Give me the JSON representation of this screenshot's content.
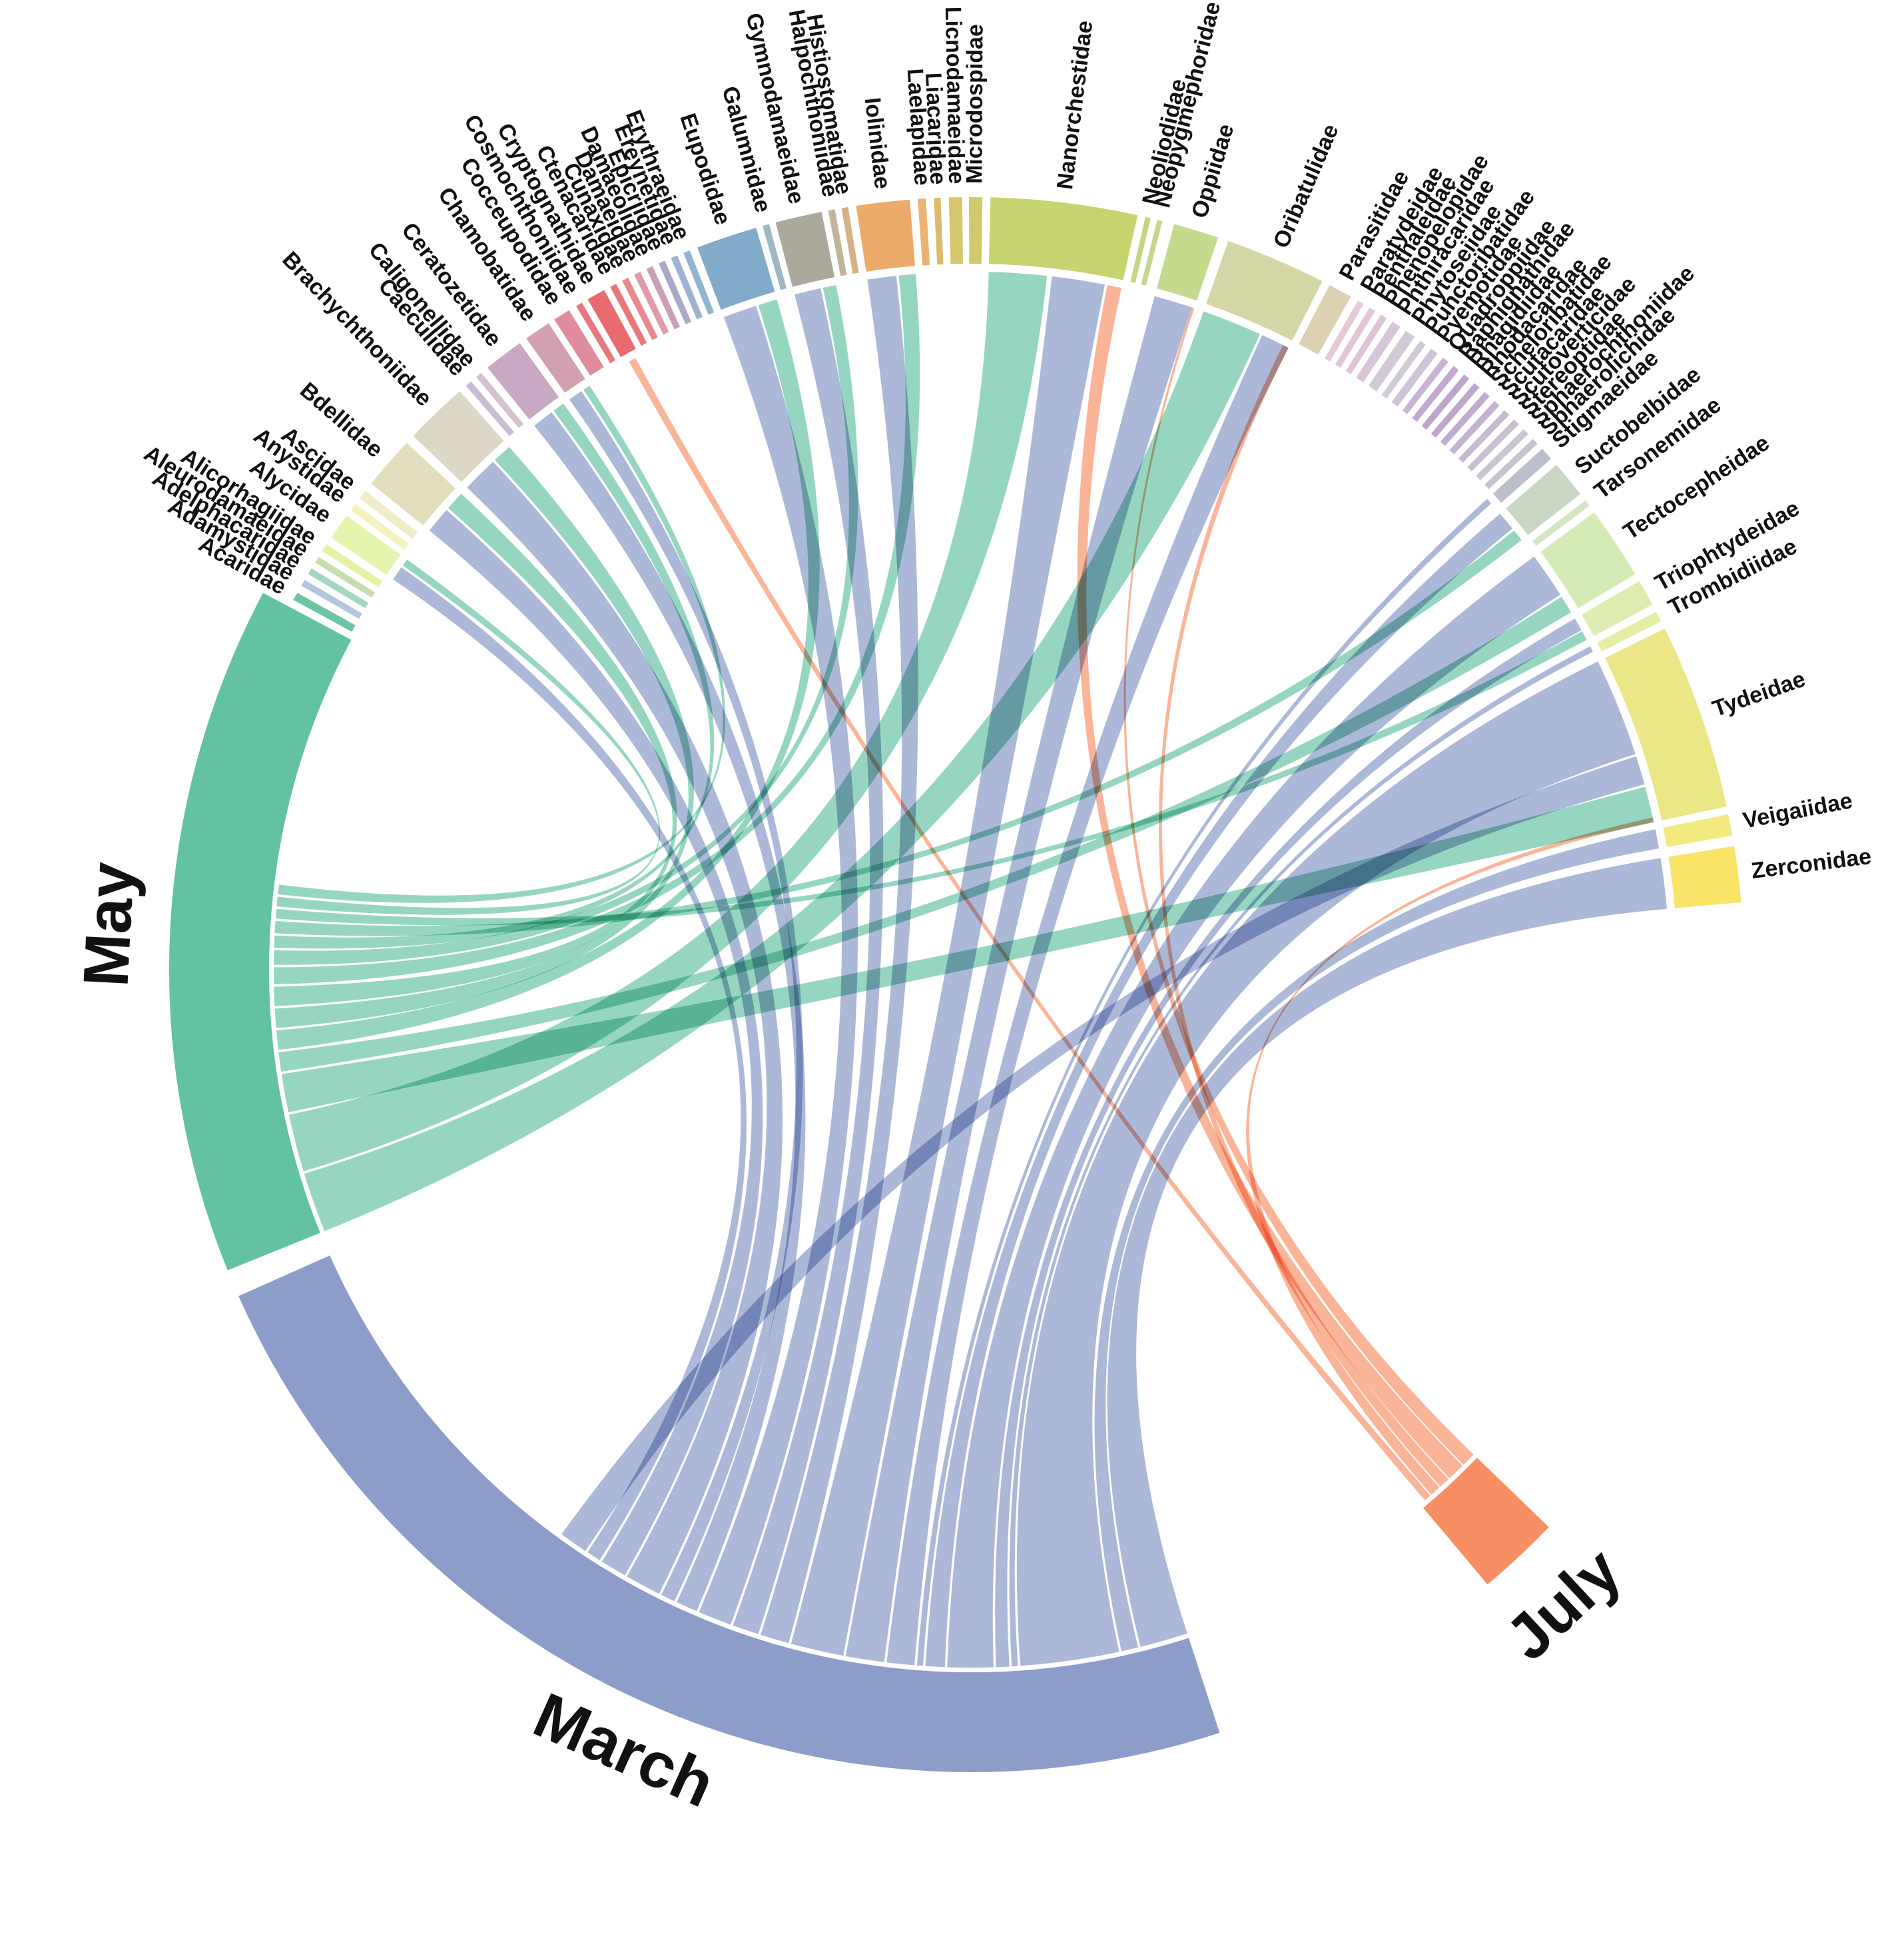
{
  "chart_data": {
    "type": "chord",
    "months": [
      {
        "name": "March",
        "color": "#8c9dc9",
        "ribbon_color": "#a3b0d4",
        "start": 162,
        "end": 246
      },
      {
        "name": "May",
        "color": "#62c2a2",
        "ribbon_color": "#7fcdb3",
        "start": 248,
        "end": 298
      },
      {
        "name": "July",
        "color": "#f88e63",
        "ribbon_color": "#f9a381",
        "start": 134,
        "end": 140
      }
    ],
    "families": [
      {
        "name": "Acaridae",
        "color": "#6dc3a6",
        "start": 298.6,
        "end": 299.2
      },
      {
        "name": "Adamystidae",
        "color": "#b2c6de",
        "start": 299.8,
        "end": 300.3
      },
      {
        "name": "Adelphacaridae",
        "color": "#a3d6c2",
        "start": 300.8,
        "end": 301.3
      },
      {
        "name": "Aleurodamaeidae",
        "color": "#c6ddb0",
        "start": 301.8,
        "end": 302.3
      },
      {
        "name": "Alicorhagiidae",
        "color": "#e6f0a7",
        "start": 302.8,
        "end": 303.4
      },
      {
        "name": "Alycidae",
        "color": "#e6f5ad",
        "start": 304.0,
        "end": 306.0
      },
      {
        "name": "Anystidae",
        "color": "#f5f2c0",
        "start": 306.5,
        "end": 307.1
      },
      {
        "name": "Ascidae",
        "color": "#f0ecc8",
        "start": 307.6,
        "end": 308.3
      },
      {
        "name": "Bdellidae",
        "color": "#e2ddbd",
        "start": 309.0,
        "end": 313.0
      },
      {
        "name": "Brachychthoniidae",
        "color": "#dcd8c5",
        "start": 313.7,
        "end": 318.5
      },
      {
        "name": "Caeculidae",
        "color": "#c7bdd2",
        "start": 319.1,
        "end": 319.6
      },
      {
        "name": "Caligonellidae",
        "color": "#d5c2cd",
        "start": 320.1,
        "end": 320.6
      },
      {
        "name": "Ceratozetidae",
        "color": "#c9a8c4",
        "start": 321.2,
        "end": 324.2
      },
      {
        "name": "Chamobatidae",
        "color": "#d3a0b1",
        "start": 324.8,
        "end": 326.8
      },
      {
        "name": "Cocceupodidae",
        "color": "#df8c9c",
        "start": 327.3,
        "end": 328.6
      },
      {
        "name": "Cosmochthoniidae",
        "color": "#e87880",
        "start": 329.2,
        "end": 329.7
      },
      {
        "name": "Cryptognathidae",
        "color": "#e96a6f",
        "start": 330.2,
        "end": 331.6
      },
      {
        "name": "Ctenacaridae",
        "color": "#e87878",
        "start": 332.1,
        "end": 332.6
      },
      {
        "name": "Cunaxidae",
        "color": "#e68a8f",
        "start": 333.1,
        "end": 333.6
      },
      {
        "name": "Damaeidae",
        "color": "#dd9bab",
        "start": 334.1,
        "end": 334.6
      },
      {
        "name": "Damaeolidae",
        "color": "#c7a0b8",
        "start": 335.1,
        "end": 335.6
      },
      {
        "name": "Epicriidae",
        "color": "#a9a8c6",
        "start": 336.1,
        "end": 336.6
      },
      {
        "name": "Ereynetidae",
        "color": "#9fb2d0",
        "start": 337.1,
        "end": 337.6
      },
      {
        "name": "Erythraeidae",
        "color": "#90b5d1",
        "start": 338.1,
        "end": 338.6
      },
      {
        "name": "Eupodidae",
        "color": "#82aac9",
        "start": 339.2,
        "end": 343.8
      },
      {
        "name": "Galumnidae",
        "color": "#9eb7c5",
        "start": 344.3,
        "end": 344.8
      },
      {
        "name": "Gymnodamaeidae",
        "color": "#aaa99b",
        "start": 345.3,
        "end": 348.8
      },
      {
        "name": "Halpochthoniidae",
        "color": "#c0b59a",
        "start": 349.3,
        "end": 349.8
      },
      {
        "name": "Histiostomatidae",
        "color": "#d4b288",
        "start": 350.3,
        "end": 350.8
      },
      {
        "name": "Iolinidae",
        "color": "#ecab6b",
        "start": 351.4,
        "end": 355.4
      },
      {
        "name": "Laelapidae",
        "color": "#e9b372",
        "start": 356.0,
        "end": 356.6
      },
      {
        "name": "Liacaridae",
        "color": "#dcbc6c",
        "start": 357.2,
        "end": 357.7
      },
      {
        "name": "Licnodamaeidae",
        "color": "#d6c76c",
        "start": 358.3,
        "end": 359.3
      },
      {
        "name": "Microdospidae",
        "color": "#cfcb6d",
        "start": 359.8,
        "end": 360.8
      },
      {
        "name": "Nanorchestidae",
        "color": "#c7d36e",
        "start": 361.4,
        "end": 372.4
      },
      {
        "name": "Neoliodidae",
        "color": "#c4d680",
        "start": 373.0,
        "end": 373.4
      },
      {
        "name": "Neopygmephoridae",
        "color": "#c6d68d",
        "start": 373.9,
        "end": 374.3
      },
      {
        "name": "Oppiidae",
        "color": "#c4db8e",
        "start": 375.2,
        "end": 378.6
      },
      {
        "name": "Oribatulidae",
        "color": "#d4d7a5",
        "start": 379.4,
        "end": 387.0
      },
      {
        "name": "Parasitidae",
        "color": "#ddd1b3",
        "start": 387.6,
        "end": 389.4
      },
      {
        "name": "Paratydeidae",
        "color": "#e5cad6",
        "start": 390.0,
        "end": 390.5
      },
      {
        "name": "Penthaleidae",
        "color": "#e3c5d8",
        "start": 391.0,
        "end": 391.5
      },
      {
        "name": "Phenopelopidae",
        "color": "#dec3d8",
        "start": 392.0,
        "end": 392.5
      },
      {
        "name": "Phthiracaridae",
        "color": "#d7c6d8",
        "start": 393.0,
        "end": 393.7
      },
      {
        "name": "Phytoseiidae",
        "color": "#d1c9d6",
        "start": 394.2,
        "end": 395.0
      },
      {
        "name": "Punctoribatidae",
        "color": "#cfcad3",
        "start": 395.5,
        "end": 396.0
      },
      {
        "name": "Pyemotidae",
        "color": "#cdc4d7",
        "start": 396.5,
        "end": 397.1
      },
      {
        "name": "Quadroppiidae",
        "color": "#c9b4d6",
        "start": 397.6,
        "end": 398.1
      },
      {
        "name": "Raphignathidae",
        "color": "#c4a8d1",
        "start": 398.6,
        "end": 399.1
      },
      {
        "name": "Rhagidiidae",
        "color": "#bfa3cd",
        "start": 399.6,
        "end": 400.1
      },
      {
        "name": "Rhodacaridae",
        "color": "#bea6cc",
        "start": 400.6,
        "end": 401.1
      },
      {
        "name": "Scheloribatidae",
        "color": "#c0acce",
        "start": 401.6,
        "end": 402.1
      },
      {
        "name": "Scutacaridae",
        "color": "#c3b2d0",
        "start": 402.6,
        "end": 403.1
      },
      {
        "name": "Scutoverticidae",
        "color": "#c6bad1",
        "start": 403.6,
        "end": 404.1
      },
      {
        "name": "Stereoptidae",
        "color": "#c8c0d1",
        "start": 404.6,
        "end": 405.1
      },
      {
        "name": "Sphaerochthoniidae",
        "color": "#cac6d0",
        "start": 405.6,
        "end": 406.1
      },
      {
        "name": "Sphaerolichidae",
        "color": "#c4c4cf",
        "start": 406.6,
        "end": 407.1
      },
      {
        "name": "Stigmaeidae",
        "color": "#bdbecb",
        "start": 407.6,
        "end": 408.6
      },
      {
        "name": "Suctobelbidae",
        "color": "#c9d6c3",
        "start": 409.2,
        "end": 412.0
      },
      {
        "name": "Tarsonemidae",
        "color": "#d3e6c4",
        "start": 412.6,
        "end": 413.1
      },
      {
        "name": "Tectocepheidae",
        "color": "#d5ebb5",
        "start": 413.7,
        "end": 419.2
      },
      {
        "name": "Triophtydeidae",
        "color": "#dfecb0",
        "start": 419.8,
        "end": 421.8
      },
      {
        "name": "Trombidiidae",
        "color": "#e6eda4",
        "start": 422.4,
        "end": 423.2
      },
      {
        "name": "Tydeidae",
        "color": "#ebe786",
        "start": 423.8,
        "end": 437.8
      },
      {
        "name": "Veigaiidae",
        "color": "#f2e97f",
        "start": 438.4,
        "end": 440.0
      },
      {
        "name": "Zerconidae",
        "color": "#f9e468",
        "start": 440.8,
        "end": 445.0
      }
    ],
    "ribbons": [
      {
        "month": "March",
        "family": "Zerconidae",
        "from": [
          162.0,
          166.0
        ],
        "to": [
          440.8,
          445.0
        ]
      },
      {
        "month": "March",
        "family": "Veigaiidae",
        "from": [
          166.2,
          167.6
        ],
        "to": [
          438.4,
          440.0
        ]
      },
      {
        "month": "March",
        "family": "Tydeidae",
        "from": [
          167.8,
          176.0
        ],
        "to": [
          423.8,
          432.0
        ]
      },
      {
        "month": "March",
        "family": "Trombidiidae",
        "from": [
          176.2,
          176.7
        ],
        "to": [
          422.4,
          422.9
        ]
      },
      {
        "month": "March",
        "family": "Triophtydeidae",
        "from": [
          176.9,
          178.0
        ],
        "to": [
          419.8,
          420.9
        ]
      },
      {
        "month": "March",
        "family": "Tectocepheidae",
        "from": [
          178.2,
          182.0
        ],
        "to": [
          413.7,
          417.5
        ]
      },
      {
        "month": "March",
        "family": "Suctobelbidae",
        "from": [
          182.2,
          183.8
        ],
        "to": [
          409.2,
          410.8
        ]
      },
      {
        "month": "March",
        "family": "Stigmaeidae",
        "from": [
          184.0,
          184.5
        ],
        "to": [
          407.6,
          408.1
        ]
      },
      {
        "month": "March",
        "family": "Oribatulidae",
        "from": [
          184.7,
          187.0
        ],
        "to": [
          384.6,
          387.0
        ]
      },
      {
        "month": "March",
        "family": "Oppiidae",
        "from": [
          187.2,
          190.4
        ],
        "to": [
          375.2,
          378.4
        ]
      },
      {
        "month": "March",
        "family": "Nanorchestidae",
        "from": [
          190.6,
          195.0
        ],
        "to": [
          366.6,
          371.0
        ]
      },
      {
        "month": "March",
        "family": "Iolinidae",
        "from": [
          195.2,
          197.6
        ],
        "to": [
          351.4,
          353.8
        ]
      },
      {
        "month": "March",
        "family": "Gymnodamaeidae",
        "from": [
          197.8,
          200.0
        ],
        "to": [
          345.3,
          347.5
        ]
      },
      {
        "month": "March",
        "family": "Eupodidae",
        "from": [
          200.2,
          203.0
        ],
        "to": [
          339.2,
          342.0
        ]
      },
      {
        "month": "March",
        "family": "Ceratozetidae",
        "from": [
          203.2,
          205.0
        ],
        "to": [
          321.2,
          323.0
        ]
      },
      {
        "month": "March",
        "family": "Chamobatidae",
        "from": [
          205.2,
          206.4
        ],
        "to": [
          324.8,
          326.0
        ]
      },
      {
        "month": "March",
        "family": "Brachychthoniidae",
        "from": [
          206.6,
          209.6
        ],
        "to": [
          313.7,
          316.7
        ]
      },
      {
        "month": "March",
        "family": "Bdellidae",
        "from": [
          209.8,
          212.0
        ],
        "to": [
          309.0,
          311.2
        ]
      },
      {
        "month": "March",
        "family": "Alycidae",
        "from": [
          212.2,
          213.4
        ],
        "to": [
          304.0,
          305.2
        ]
      },
      {
        "month": "March",
        "family": "Tydeidae",
        "from": [
          213.6,
          216.0
        ],
        "to": [
          432.2,
          434.6
        ]
      },
      {
        "month": "May",
        "family": "Oribatulidae",
        "from": [
          248.0,
          253.0
        ],
        "to": [
          379.4,
          384.4
        ]
      },
      {
        "month": "May",
        "family": "Nanorchestidae",
        "from": [
          253.2,
          258.0
        ],
        "to": [
          361.4,
          366.2
        ]
      },
      {
        "month": "May",
        "family": "Tydeidae",
        "from": [
          258.2,
          261.4
        ],
        "to": [
          434.8,
          437.8
        ]
      },
      {
        "month": "May",
        "family": "Tectocepheidae",
        "from": [
          261.6,
          263.2
        ],
        "to": [
          417.7,
          419.2
        ]
      },
      {
        "month": "May",
        "family": "Eupodidae",
        "from": [
          263.4,
          265.0
        ],
        "to": [
          342.2,
          343.8
        ]
      },
      {
        "month": "May",
        "family": "Brachychthoniidae",
        "from": [
          265.2,
          266.8
        ],
        "to": [
          316.9,
          318.5
        ]
      },
      {
        "month": "May",
        "family": "Bdellidae",
        "from": [
          267.0,
          268.6
        ],
        "to": [
          311.4,
          313.0
        ]
      },
      {
        "month": "May",
        "family": "Iolinidae",
        "from": [
          268.8,
          270.2
        ],
        "to": [
          354.0,
          355.4
        ]
      },
      {
        "month": "May",
        "family": "Gymnodamaeidae",
        "from": [
          270.4,
          271.6
        ],
        "to": [
          347.7,
          348.8
        ]
      },
      {
        "month": "May",
        "family": "Ceratozetidae",
        "from": [
          271.8,
          272.8
        ],
        "to": [
          323.2,
          324.2
        ]
      },
      {
        "month": "May",
        "family": "Suctobelbidae",
        "from": [
          273.0,
          274.0
        ],
        "to": [
          411.0,
          412.0
        ]
      },
      {
        "month": "May",
        "family": "Triophtydeidae",
        "from": [
          274.2,
          275.0
        ],
        "to": [
          421.0,
          421.8
        ]
      },
      {
        "month": "May",
        "family": "Alycidae",
        "from": [
          275.2,
          276.0
        ],
        "to": [
          305.4,
          306.0
        ]
      },
      {
        "month": "May",
        "family": "Chamobatidae",
        "from": [
          276.2,
          277.0
        ],
        "to": [
          326.2,
          326.8
        ]
      },
      {
        "month": "July",
        "family": "Oppiidae",
        "from": [
          134.0,
          135.2
        ],
        "to": [
          378.4,
          378.6
        ]
      },
      {
        "month": "July",
        "family": "Nanorchestidae",
        "from": [
          135.3,
          136.8
        ],
        "to": [
          371.2,
          372.4
        ]
      },
      {
        "month": "July",
        "family": "Oribatulidae",
        "from": [
          136.9,
          137.8
        ],
        "to": [
          386.5,
          387.0
        ]
      },
      {
        "month": "July",
        "family": "Tydeidae",
        "from": [
          137.9,
          138.8
        ],
        "to": [
          437.4,
          437.8
        ]
      },
      {
        "month": "July",
        "family": "Cryptognathidae",
        "from": [
          138.9,
          139.5
        ],
        "to": [
          330.6,
          331.2
        ]
      }
    ]
  }
}
